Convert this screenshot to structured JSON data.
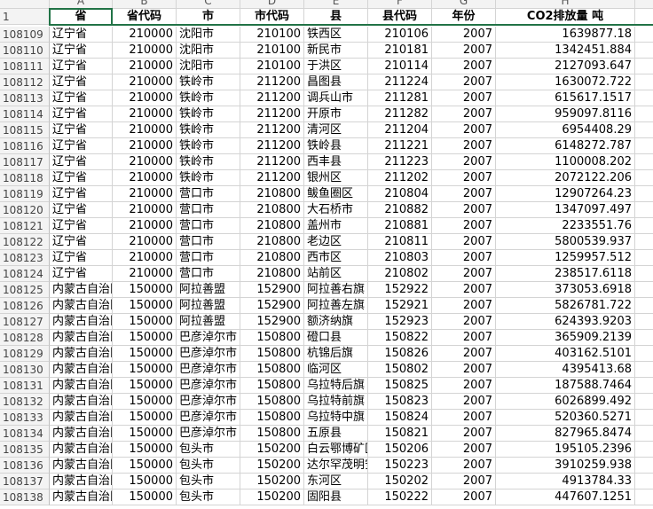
{
  "column_letters": [
    "A",
    "B",
    "C",
    "D",
    "E",
    "F",
    "G",
    "H"
  ],
  "header": {
    "row_number": "1",
    "cells": [
      "省",
      "省代码",
      "市",
      "市代码",
      "县",
      "县代码",
      "年份",
      "CO2排放量 吨"
    ]
  },
  "rows": [
    {
      "row_number": "108109",
      "cells": [
        "辽宁省",
        "210000",
        "沈阳市",
        "210100",
        "铁西区",
        "210106",
        "2007",
        "1639877.18"
      ]
    },
    {
      "row_number": "108110",
      "cells": [
        "辽宁省",
        "210000",
        "沈阳市",
        "210100",
        "新民市",
        "210181",
        "2007",
        "1342451.884"
      ]
    },
    {
      "row_number": "108111",
      "cells": [
        "辽宁省",
        "210000",
        "沈阳市",
        "210100",
        "于洪区",
        "210114",
        "2007",
        "2127093.647"
      ]
    },
    {
      "row_number": "108112",
      "cells": [
        "辽宁省",
        "210000",
        "铁岭市",
        "211200",
        "昌图县",
        "211224",
        "2007",
        "1630072.722"
      ]
    },
    {
      "row_number": "108113",
      "cells": [
        "辽宁省",
        "210000",
        "铁岭市",
        "211200",
        "调兵山市",
        "211281",
        "2007",
        "615617.1517"
      ]
    },
    {
      "row_number": "108114",
      "cells": [
        "辽宁省",
        "210000",
        "铁岭市",
        "211200",
        "开原市",
        "211282",
        "2007",
        "959097.8116"
      ]
    },
    {
      "row_number": "108115",
      "cells": [
        "辽宁省",
        "210000",
        "铁岭市",
        "211200",
        "清河区",
        "211204",
        "2007",
        "6954408.29"
      ]
    },
    {
      "row_number": "108116",
      "cells": [
        "辽宁省",
        "210000",
        "铁岭市",
        "211200",
        "铁岭县",
        "211221",
        "2007",
        "6148272.787"
      ]
    },
    {
      "row_number": "108117",
      "cells": [
        "辽宁省",
        "210000",
        "铁岭市",
        "211200",
        "西丰县",
        "211223",
        "2007",
        "1100008.202"
      ]
    },
    {
      "row_number": "108118",
      "cells": [
        "辽宁省",
        "210000",
        "铁岭市",
        "211200",
        "银州区",
        "211202",
        "2007",
        "2072122.206"
      ]
    },
    {
      "row_number": "108119",
      "cells": [
        "辽宁省",
        "210000",
        "营口市",
        "210800",
        "鲅鱼圈区",
        "210804",
        "2007",
        "12907264.23"
      ]
    },
    {
      "row_number": "108120",
      "cells": [
        "辽宁省",
        "210000",
        "营口市",
        "210800",
        "大石桥市",
        "210882",
        "2007",
        "1347097.497"
      ]
    },
    {
      "row_number": "108121",
      "cells": [
        "辽宁省",
        "210000",
        "营口市",
        "210800",
        "盖州市",
        "210881",
        "2007",
        "2233551.76"
      ]
    },
    {
      "row_number": "108122",
      "cells": [
        "辽宁省",
        "210000",
        "营口市",
        "210800",
        "老边区",
        "210811",
        "2007",
        "5800539.937"
      ]
    },
    {
      "row_number": "108123",
      "cells": [
        "辽宁省",
        "210000",
        "营口市",
        "210800",
        "西市区",
        "210803",
        "2007",
        "1259957.512"
      ]
    },
    {
      "row_number": "108124",
      "cells": [
        "辽宁省",
        "210000",
        "营口市",
        "210800",
        "站前区",
        "210802",
        "2007",
        "238517.6118"
      ]
    },
    {
      "row_number": "108125",
      "cells": [
        "内蒙古自治区",
        "150000",
        "阿拉善盟",
        "152900",
        "阿拉善右旗",
        "152922",
        "2007",
        "373053.6918"
      ]
    },
    {
      "row_number": "108126",
      "cells": [
        "内蒙古自治区",
        "150000",
        "阿拉善盟",
        "152900",
        "阿拉善左旗",
        "152921",
        "2007",
        "5826781.722"
      ]
    },
    {
      "row_number": "108127",
      "cells": [
        "内蒙古自治区",
        "150000",
        "阿拉善盟",
        "152900",
        "额济纳旗",
        "152923",
        "2007",
        "624393.9203"
      ]
    },
    {
      "row_number": "108128",
      "cells": [
        "内蒙古自治区",
        "150000",
        "巴彦淖尔市",
        "150800",
        "磴口县",
        "150822",
        "2007",
        "365909.2139"
      ]
    },
    {
      "row_number": "108129",
      "cells": [
        "内蒙古自治区",
        "150000",
        "巴彦淖尔市",
        "150800",
        "杭锦后旗",
        "150826",
        "2007",
        "403162.5101"
      ]
    },
    {
      "row_number": "108130",
      "cells": [
        "内蒙古自治区",
        "150000",
        "巴彦淖尔市",
        "150800",
        "临河区",
        "150802",
        "2007",
        "4395413.68"
      ]
    },
    {
      "row_number": "108131",
      "cells": [
        "内蒙古自治区",
        "150000",
        "巴彦淖尔市",
        "150800",
        "乌拉特后旗",
        "150825",
        "2007",
        "187588.7464"
      ]
    },
    {
      "row_number": "108132",
      "cells": [
        "内蒙古自治区",
        "150000",
        "巴彦淖尔市",
        "150800",
        "乌拉特前旗",
        "150823",
        "2007",
        "6026899.492"
      ]
    },
    {
      "row_number": "108133",
      "cells": [
        "内蒙古自治区",
        "150000",
        "巴彦淖尔市",
        "150800",
        "乌拉特中旗",
        "150824",
        "2007",
        "520360.5271"
      ]
    },
    {
      "row_number": "108134",
      "cells": [
        "内蒙古自治区",
        "150000",
        "巴彦淖尔市",
        "150800",
        "五原县",
        "150821",
        "2007",
        "827965.8474"
      ]
    },
    {
      "row_number": "108135",
      "cells": [
        "内蒙古自治区",
        "150000",
        "包头市",
        "150200",
        "白云鄂博矿区",
        "150206",
        "2007",
        "195105.2396"
      ]
    },
    {
      "row_number": "108136",
      "cells": [
        "内蒙古自治区",
        "150000",
        "包头市",
        "150200",
        "达尔罕茂明安联合旗",
        "150223",
        "2007",
        "3910259.938"
      ]
    },
    {
      "row_number": "108137",
      "cells": [
        "内蒙古自治区",
        "150000",
        "包头市",
        "150200",
        "东河区",
        "150202",
        "2007",
        "4913784.33"
      ]
    },
    {
      "row_number": "108138",
      "cells": [
        "内蒙古自治区",
        "150000",
        "包头市",
        "150200",
        "固阳县",
        "150222",
        "2007",
        "447607.1251"
      ]
    }
  ]
}
